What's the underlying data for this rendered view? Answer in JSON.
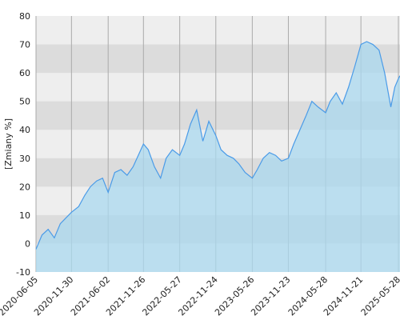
{
  "chart_data": {
    "type": "area",
    "y_label": "[Zmiany %]",
    "x": [
      "2020-06-05",
      "2020-07-05",
      "2020-08-05",
      "2020-09-05",
      "2020-10-05",
      "2020-11-30",
      "2021-01-05",
      "2021-02-05",
      "2021-03-05",
      "2021-04-05",
      "2021-05-05",
      "2021-06-02",
      "2021-07-05",
      "2021-08-05",
      "2021-09-05",
      "2021-10-05",
      "2021-11-26",
      "2021-12-20",
      "2022-01-20",
      "2022-02-20",
      "2022-03-20",
      "2022-04-20",
      "2022-05-27",
      "2022-06-20",
      "2022-07-20",
      "2022-08-20",
      "2022-09-20",
      "2022-10-20",
      "2022-11-24",
      "2022-12-20",
      "2023-01-20",
      "2023-02-20",
      "2023-03-20",
      "2023-04-20",
      "2023-05-26",
      "2023-06-20",
      "2023-07-20",
      "2023-08-20",
      "2023-09-20",
      "2023-10-20",
      "2023-11-23",
      "2023-12-20",
      "2024-01-20",
      "2024-02-20",
      "2024-03-20",
      "2024-04-20",
      "2024-05-28",
      "2024-06-20",
      "2024-07-20",
      "2024-08-20",
      "2024-09-20",
      "2024-10-20",
      "2024-11-21",
      "2024-12-20",
      "2025-01-20",
      "2025-02-20",
      "2025-03-20",
      "2025-04-20",
      "2025-05-10",
      "2025-05-28",
      "2025-06-05"
    ],
    "values": [
      -2,
      3,
      5,
      2,
      7,
      11,
      13,
      17,
      20,
      22,
      23,
      18,
      25,
      26,
      24,
      27,
      35,
      33,
      27,
      23,
      30,
      33,
      31,
      35,
      42,
      47,
      36,
      43,
      38,
      33,
      31,
      30,
      28,
      25,
      23,
      26,
      30,
      32,
      31,
      29,
      30,
      35,
      40,
      45,
      50,
      48,
      46,
      50,
      53,
      49,
      55,
      62,
      70,
      71,
      70,
      68,
      60,
      48,
      55,
      58,
      59
    ],
    "color": "#4a9be8",
    "fill": "#a9d8ef",
    "xlim": [
      "2020-06-05",
      "2025-06-05"
    ],
    "xticks": [
      "2020-06-05",
      "2020-11-30",
      "2021-06-02",
      "2021-11-26",
      "2022-05-27",
      "2022-11-24",
      "2023-05-26",
      "2023-11-23",
      "2024-05-28",
      "2024-11-21",
      "2025-05-28"
    ],
    "ylim": [
      -10,
      80
    ],
    "yticks": [
      -10,
      0,
      10,
      20,
      30,
      40,
      50,
      60,
      70,
      80
    ],
    "grid": true
  }
}
